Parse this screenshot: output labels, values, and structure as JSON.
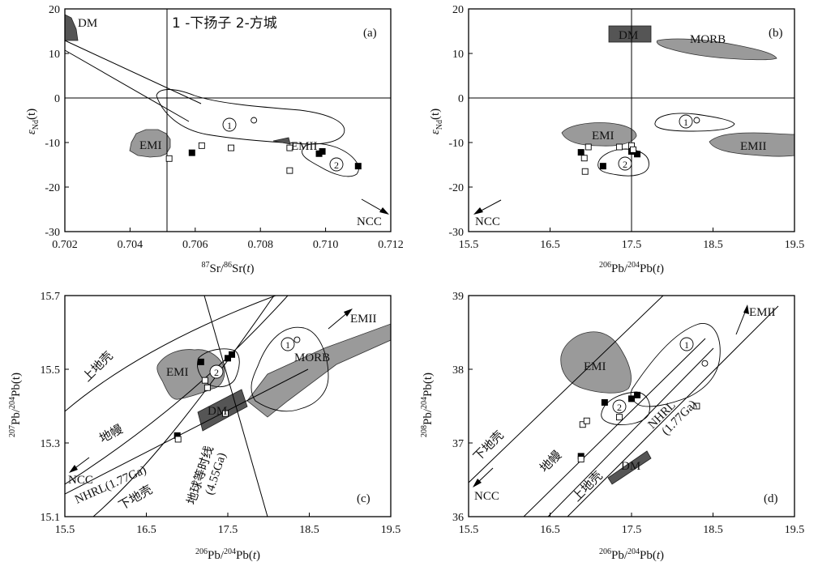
{
  "chart_data": [
    {
      "type": "scatter",
      "panel": "(a)",
      "title": "1 -下扬子 2-方城",
      "xlabel_sup1": "87",
      "xlabel_mid1": "Sr/",
      "xlabel_sup2": "86",
      "xlabel_mid2": "Sr(",
      "xlabel_var": "t",
      "xlabel_end": ")",
      "ylabel_main": "ε",
      "ylabel_sub": "Nd",
      "ylabel_end": "(t)",
      "xlim": [
        0.702,
        0.712
      ],
      "ylim": [
        -30,
        20
      ],
      "xticks": [
        "0.702",
        "0.704",
        "0.706",
        "0.708",
        "0.710",
        "0.712"
      ],
      "yticks": [
        "-30",
        "-20",
        "-10",
        "0",
        "10",
        "20"
      ],
      "labels": {
        "dm": "DM",
        "emi": "EMI",
        "emii": "EMII",
        "ncc": "NCC",
        "c1": "1",
        "c2": "2"
      },
      "series": [
        {
          "name": "filled squares",
          "points": [
            [
              0.7059,
              -12.3
            ],
            [
              0.7098,
              -12.5
            ],
            [
              0.7099,
              -12.0
            ],
            [
              0.711,
              -15.3
            ]
          ]
        },
        {
          "name": "open squares",
          "points": [
            [
              0.7052,
              -13.6
            ],
            [
              0.7062,
              -10.7
            ],
            [
              0.7071,
              -11.2
            ],
            [
              0.7089,
              -11.2
            ],
            [
              0.7089,
              -16.3
            ]
          ]
        },
        {
          "name": "open circle",
          "points": [
            [
              0.7078,
              -5.0
            ]
          ]
        }
      ]
    },
    {
      "type": "scatter",
      "panel": "(b)",
      "xlabel_sup1": "206",
      "xlabel_mid1": "Pb/",
      "xlabel_sup2": "204",
      "xlabel_mid2": "Pb(",
      "xlabel_var": "t",
      "xlabel_end": ")",
      "ylabel_main": "ε",
      "ylabel_sub": "Nd",
      "ylabel_end": "(t)",
      "xlim": [
        15.5,
        19.5
      ],
      "ylim": [
        -30,
        20
      ],
      "xticks": [
        "15.5",
        "16.5",
        "17.5",
        "18.5",
        "19.5"
      ],
      "yticks": [
        "-30",
        "-20",
        "-10",
        "0",
        "10",
        "20"
      ],
      "labels": {
        "dm": "DM",
        "morb": "MORB",
        "emi": "EMI",
        "emii": "EMII",
        "ncc": "NCC",
        "c1": "1",
        "c2": "2"
      },
      "series": [
        {
          "name": "filled squares",
          "points": [
            [
              16.88,
              -12.2
            ],
            [
              17.15,
              -15.3
            ],
            [
              17.5,
              -12.0
            ],
            [
              17.57,
              -12.6
            ]
          ]
        },
        {
          "name": "open squares",
          "points": [
            [
              16.92,
              -13.5
            ],
            [
              16.93,
              -16.5
            ],
            [
              16.97,
              -11.0
            ],
            [
              17.35,
              -11.0
            ],
            [
              17.5,
              -10.7
            ],
            [
              17.52,
              -11.6
            ]
          ]
        },
        {
          "name": "open circle",
          "points": [
            [
              18.3,
              -5.0
            ]
          ]
        }
      ]
    },
    {
      "type": "scatter",
      "panel": "(c)",
      "xlabel_sup1": "206",
      "xlabel_mid1": "Pb/",
      "xlabel_sup2": "204",
      "xlabel_mid2": "Pb(",
      "xlabel_var": "t",
      "xlabel_end": ")",
      "ylabel_sup1": "207",
      "ylabel_mid1": "Pb/",
      "ylabel_sup2": "204",
      "ylabel_end": "Pb(t)",
      "xlim": [
        15.5,
        19.5
      ],
      "ylim": [
        15.1,
        15.7
      ],
      "xticks": [
        "15.5",
        "16.5",
        "17.5",
        "18.5",
        "19.5"
      ],
      "yticks": [
        "15.1",
        "15.3",
        "15.5",
        "15.7"
      ],
      "labels": {
        "dm": "DM",
        "morb": "MORB",
        "emi": "EMI",
        "emii": "EMII",
        "ncc": "NCC",
        "upper_crust": "上地壳",
        "mantle": "地幔",
        "lower_crust": "下地壳",
        "nhrl": "NHRL(1.77Ga)",
        "geochron_1": "地球等时线",
        "geochron_2": "(4.55Ga)",
        "c1": "1",
        "c2": "2"
      },
      "series": [
        {
          "name": "filled squares",
          "points": [
            [
              16.88,
              15.32
            ],
            [
              17.17,
              15.52
            ],
            [
              17.5,
              15.53
            ],
            [
              17.55,
              15.54
            ]
          ]
        },
        {
          "name": "open squares",
          "points": [
            [
              16.89,
              15.31
            ],
            [
              17.22,
              15.47
            ],
            [
              17.25,
              15.45
            ],
            [
              17.47,
              15.38
            ]
          ]
        },
        {
          "name": "open circle",
          "points": [
            [
              18.35,
              15.58
            ]
          ]
        }
      ]
    },
    {
      "type": "scatter",
      "panel": "(d)",
      "xlabel_sup1": "206",
      "xlabel_mid1": "Pb/",
      "xlabel_sup2": "204",
      "xlabel_mid2": "Pb(",
      "xlabel_var": "t",
      "xlabel_end": ")",
      "ylabel_sup1": "208",
      "ylabel_mid1": "Pb/",
      "ylabel_sup2": "204",
      "ylabel_end": "Pb(t)",
      "xlim": [
        15.5,
        19.5
      ],
      "ylim": [
        36,
        39
      ],
      "xticks": [
        "15.5",
        "16.5",
        "17.5",
        "18.5",
        "19.5"
      ],
      "yticks": [
        "36",
        "37",
        "38",
        "39"
      ],
      "labels": {
        "dm": "DM",
        "emi": "EMI",
        "emii": "EMII",
        "ncc": "NCC",
        "lower_crust": "下地壳",
        "mantle": "地幔",
        "upper_crust": "上地壳",
        "nhrl_1": "NHRL",
        "nhrl_2": "(1.77Ga)",
        "c1": "1",
        "c2": "2"
      },
      "series": [
        {
          "name": "filled squares",
          "points": [
            [
              16.88,
              36.82
            ],
            [
              17.17,
              37.55
            ],
            [
              17.5,
              37.6
            ],
            [
              17.57,
              37.65
            ]
          ]
        },
        {
          "name": "open squares",
          "points": [
            [
              16.9,
              37.25
            ],
            [
              16.95,
              37.3
            ],
            [
              17.35,
              37.35
            ],
            [
              16.88,
              36.78
            ],
            [
              18.3,
              37.5
            ]
          ]
        },
        {
          "name": "open circle",
          "points": [
            [
              18.4,
              38.08
            ]
          ]
        }
      ]
    }
  ]
}
